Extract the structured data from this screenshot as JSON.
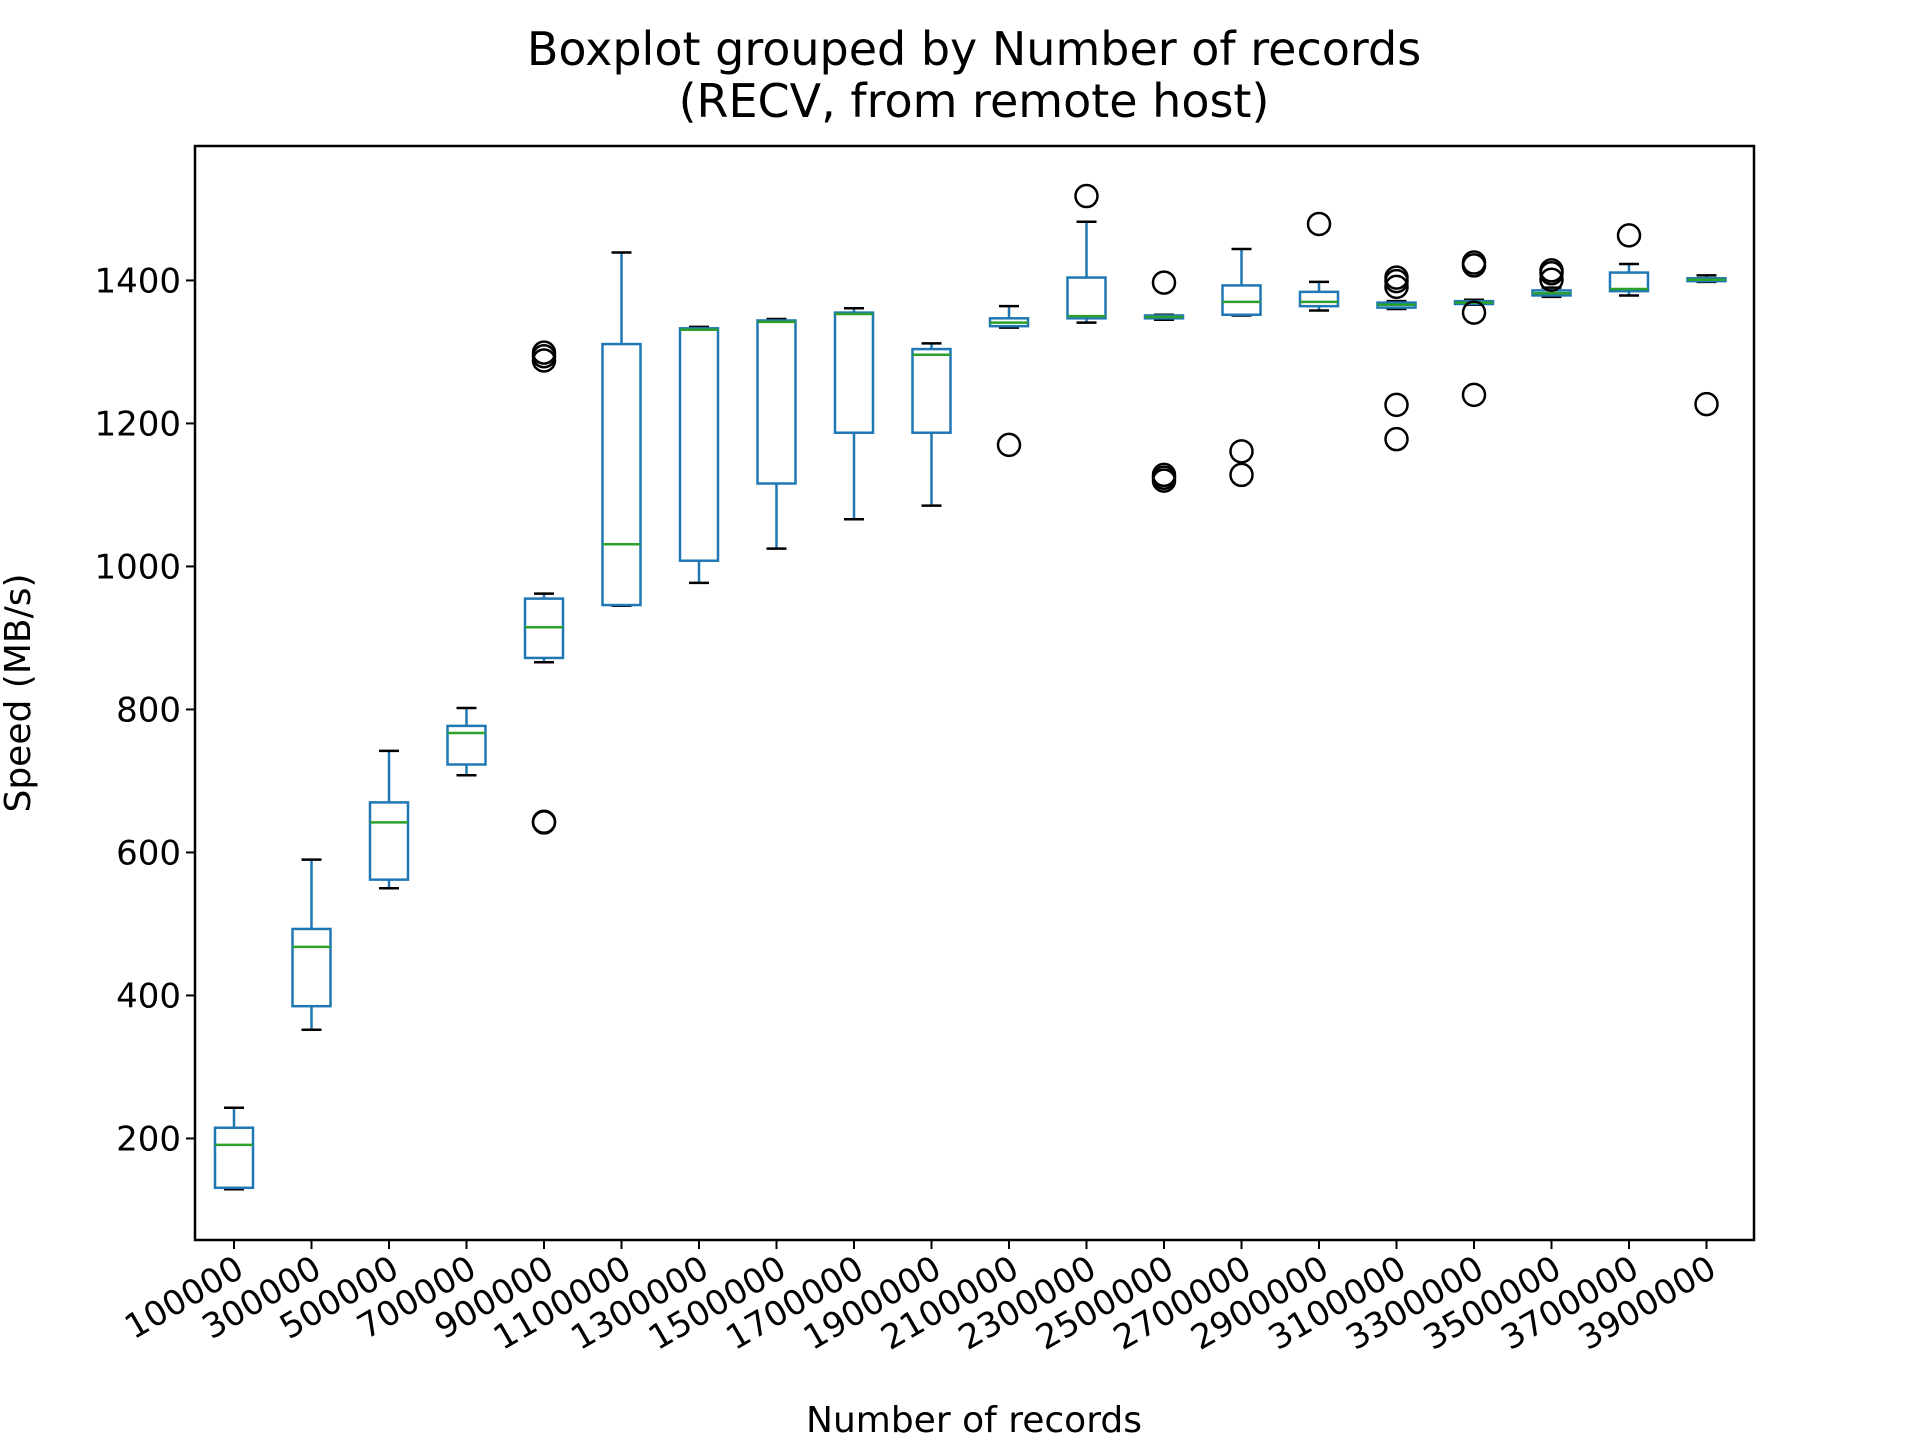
{
  "chart_data": {
    "type": "boxplot",
    "title": "Boxplot grouped by Number of records",
    "subtitle": "(RECV, from remote host)",
    "xlabel": "Number of records",
    "ylabel": "Speed (MB/s)",
    "ylim": [
      58,
      1588
    ],
    "yticks": [
      200,
      400,
      600,
      800,
      1000,
      1200,
      1400
    ],
    "grid": false,
    "colors": {
      "box": "#1f77b4",
      "median": "#2ca02c",
      "whisker_cap": "#000000",
      "flier": "#000000"
    },
    "categories": [
      "100000",
      "300000",
      "500000",
      "700000",
      "900000",
      "1100000",
      "1300000",
      "1500000",
      "1700000",
      "1900000",
      "2100000",
      "2300000",
      "2500000",
      "2700000",
      "2900000",
      "3100000",
      "3300000",
      "3500000",
      "3700000",
      "3900000"
    ],
    "boxes": [
      {
        "whislo": 129,
        "q1": 131,
        "med": 191,
        "q3": 215,
        "whishi": 243,
        "fliers": []
      },
      {
        "whislo": 352,
        "q1": 385,
        "med": 468,
        "q3": 493,
        "whishi": 590,
        "fliers": []
      },
      {
        "whislo": 550,
        "q1": 562,
        "med": 642,
        "q3": 670,
        "whishi": 742,
        "fliers": []
      },
      {
        "whislo": 708,
        "q1": 723,
        "med": 767,
        "q3": 777,
        "whishi": 802,
        "fliers": []
      },
      {
        "whislo": 866,
        "q1": 872,
        "med": 915,
        "q3": 955,
        "whishi": 962,
        "fliers": [
          642,
          643,
          1288,
          1294,
          1299
        ]
      },
      {
        "whislo": 945,
        "q1": 946,
        "med": 1031,
        "q3": 1311,
        "whishi": 1439,
        "fliers": []
      },
      {
        "whislo": 977,
        "q1": 1008,
        "med": 1331,
        "q3": 1333,
        "whishi": 1335,
        "fliers": []
      },
      {
        "whislo": 1025,
        "q1": 1116,
        "med": 1342,
        "q3": 1344,
        "whishi": 1346,
        "fliers": []
      },
      {
        "whislo": 1066,
        "q1": 1187,
        "med": 1353,
        "q3": 1355,
        "whishi": 1361,
        "fliers": []
      },
      {
        "whislo": 1085,
        "q1": 1187,
        "med": 1296,
        "q3": 1304,
        "whishi": 1312,
        "fliers": []
      },
      {
        "whislo": 1334,
        "q1": 1336,
        "med": 1341,
        "q3": 1347,
        "whishi": 1364,
        "fliers": [
          1170
        ]
      },
      {
        "whislo": 1341,
        "q1": 1347,
        "med": 1350,
        "q3": 1404,
        "whishi": 1482,
        "fliers": [
          1518
        ]
      },
      {
        "whislo": 1345,
        "q1": 1347,
        "med": 1349,
        "q3": 1351,
        "whishi": 1352,
        "fliers": [
          1120,
          1124,
          1128,
          1397
        ]
      },
      {
        "whislo": 1351,
        "q1": 1352,
        "med": 1370,
        "q3": 1393,
        "whishi": 1444,
        "fliers": [
          1128,
          1161
        ]
      },
      {
        "whislo": 1358,
        "q1": 1364,
        "med": 1370,
        "q3": 1384,
        "whishi": 1398,
        "fliers": [
          1479
        ]
      },
      {
        "whislo": 1360,
        "q1": 1362,
        "med": 1366,
        "q3": 1369,
        "whishi": 1371,
        "fliers": [
          1178,
          1226,
          1391,
          1399,
          1404
        ]
      },
      {
        "whislo": 1366,
        "q1": 1367,
        "med": 1369,
        "q3": 1371,
        "whishi": 1373,
        "fliers": [
          1240,
          1355,
          1421,
          1425
        ]
      },
      {
        "whislo": 1377,
        "q1": 1379,
        "med": 1382,
        "q3": 1386,
        "whishi": 1390,
        "fliers": [
          1401,
          1410,
          1414
        ]
      },
      {
        "whislo": 1379,
        "q1": 1385,
        "med": 1388,
        "q3": 1411,
        "whishi": 1423,
        "fliers": [
          1463
        ]
      },
      {
        "whislo": 1398,
        "q1": 1399,
        "med": 1401,
        "q3": 1403,
        "whishi": 1407,
        "fliers": [
          1227
        ]
      }
    ]
  }
}
